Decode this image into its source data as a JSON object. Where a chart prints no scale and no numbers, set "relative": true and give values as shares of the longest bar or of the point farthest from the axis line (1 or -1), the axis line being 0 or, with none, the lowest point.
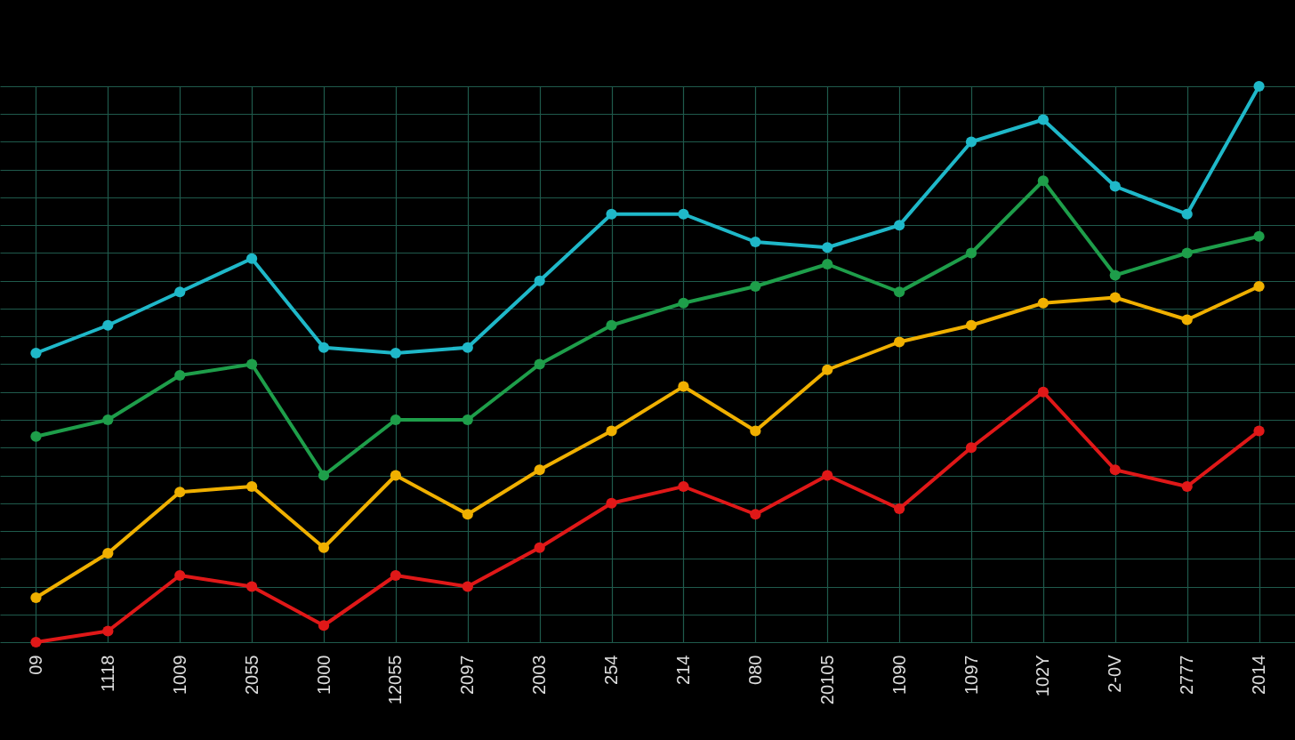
{
  "chart_data": {
    "type": "line",
    "relative": true,
    "grid": true,
    "marker": "circle",
    "line_style": "solid",
    "categories": [
      "09",
      "1118",
      "1009",
      "2055",
      "1000",
      "12055",
      "2097",
      "2003",
      "254",
      "214",
      "080",
      "20105",
      "1090",
      "1097",
      "102Y",
      "2-0V",
      "2777",
      "2014"
    ],
    "series": [
      {
        "color": "#1fb8c9",
        "values": [
          0.52,
          0.57,
          0.63,
          0.69,
          0.53,
          0.52,
          0.53,
          0.65,
          0.77,
          0.77,
          0.72,
          0.71,
          0.75,
          0.9,
          0.94,
          0.82,
          0.77,
          1
        ]
      },
      {
        "color": "#1e9e4a",
        "values": [
          0.37,
          0.4,
          0.48,
          0.5,
          0.3,
          0.4,
          0.4,
          0.5,
          0.57,
          0.61,
          0.64,
          0.68,
          0.63,
          0.7,
          0.83,
          0.66,
          0.7,
          0.73
        ]
      },
      {
        "color": "#f0b000",
        "values": [
          0.08,
          0.16,
          0.27,
          0.28,
          0.17,
          0.3,
          0.23,
          0.31,
          0.38,
          0.46,
          0.38,
          0.49,
          0.54,
          0.57,
          0.61,
          0.62,
          0.58,
          0.64
        ]
      },
      {
        "color": "#e01818",
        "values": [
          0,
          0.02,
          0.12,
          0.1,
          0.03,
          0.12,
          0.1,
          0.17,
          0.25,
          0.28,
          0.23,
          0.3,
          0.24,
          0.35,
          0.45,
          0.31,
          0.28,
          0.38
        ]
      }
    ]
  }
}
